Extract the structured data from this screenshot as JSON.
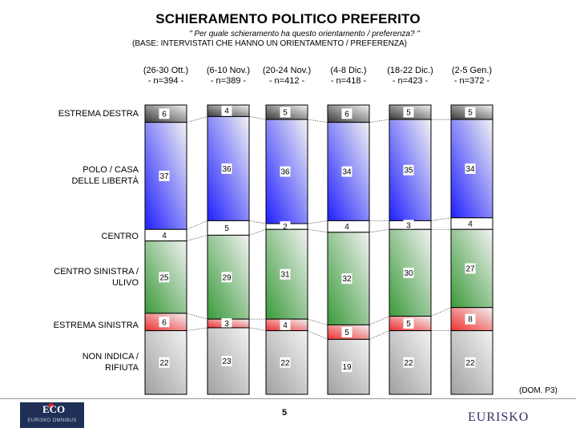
{
  "title": "SCHIERAMENTO POLITICO PREFERITO",
  "question": "\" Per quale schieramento ha questo orientamento / preferenza? \"",
  "base": "(BASE: INTERVISTATI CHE HANNO UN ORIENTAMENTO / PREFERENZA)",
  "dom_note": "(DOM. P3)",
  "page_number": "5",
  "logo_left": {
    "text": "ECO",
    "subtext": "EURISKO OMNIBUS"
  },
  "logo_right": "EURISKO",
  "colors": {
    "estrema_destra": "#3a3a3a",
    "polo": "#2020ff",
    "centro": "#ffffff",
    "centro_sinistra": "#3a9a3a",
    "estrema_sinistra": "#ee3030",
    "non_indica": "#a0a0a0"
  },
  "chart_data": {
    "type": "bar",
    "stacked": true,
    "categories": [
      {
        "period": "(26-30 Ott.)",
        "n": "- n=394 -"
      },
      {
        "period": "(6-10 Nov.)",
        "n": "- n=389 -"
      },
      {
        "period": "(20-24 Nov.)",
        "n": "- n=412 -"
      },
      {
        "period": "(4-8 Dic.)",
        "n": "- n=418 -"
      },
      {
        "period": "(18-22 Dic.)",
        "n": "- n=423 -"
      },
      {
        "period": "(2-5 Gen.)",
        "n": "- n=372 -"
      }
    ],
    "series": [
      {
        "name": "ESTREMA DESTRA",
        "label_lines": [
          "ESTREMA DESTRA"
        ],
        "values": [
          6,
          4,
          5,
          6,
          5,
          5
        ]
      },
      {
        "name": "POLO / CASA DELLE LIBERTÀ",
        "label_lines": [
          "POLO / CASA",
          "DELLE LIBERTÀ"
        ],
        "values": [
          37,
          36,
          36,
          34,
          35,
          34
        ]
      },
      {
        "name": "CENTRO",
        "label_lines": [
          "CENTRO"
        ],
        "values": [
          4,
          5,
          2,
          4,
          3,
          4
        ]
      },
      {
        "name": "CENTRO SINISTRA / ULIVO",
        "label_lines": [
          "CENTRO SINISTRA /",
          "ULIVO"
        ],
        "values": [
          25,
          29,
          31,
          32,
          30,
          27
        ]
      },
      {
        "name": "ESTREMA SINISTRA",
        "label_lines": [
          "ESTREMA SINISTRA"
        ],
        "values": [
          6,
          3,
          4,
          5,
          5,
          8
        ]
      },
      {
        "name": "NON INDICA / RIFIUTA",
        "label_lines": [
          "NON INDICA /",
          "RIFIUTA"
        ],
        "values": [
          22,
          23,
          22,
          19,
          22,
          22
        ]
      }
    ]
  }
}
